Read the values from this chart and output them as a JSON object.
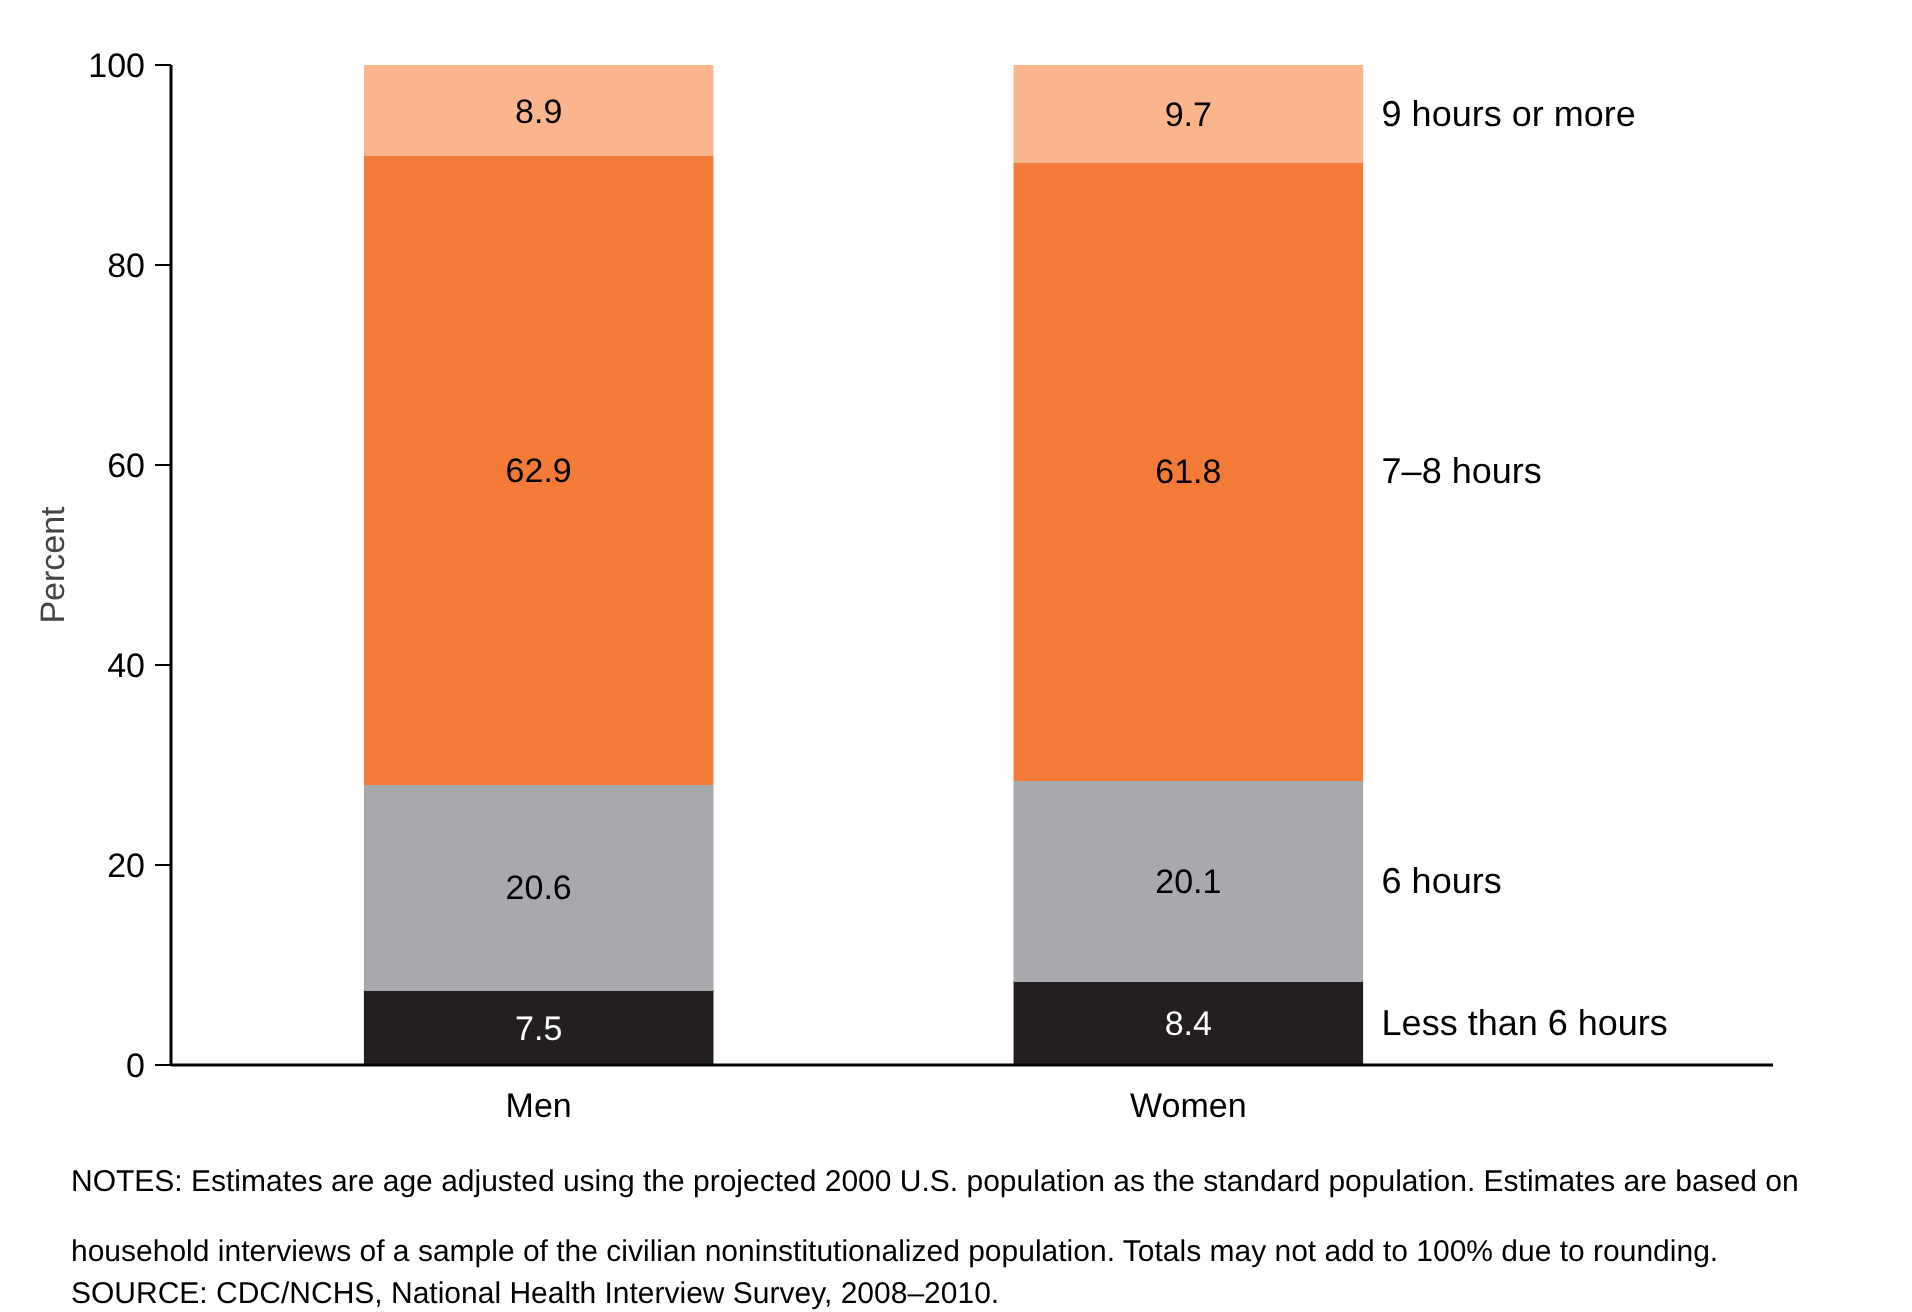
{
  "chart_data": {
    "type": "bar",
    "stacked": true,
    "ylabel": "Percent",
    "categories": [
      "Men",
      "Women"
    ],
    "series": [
      {
        "name": "Less than 6 hours",
        "color": "#231f20",
        "values": [
          7.5,
          8.4
        ]
      },
      {
        "name": "6 hours",
        "color": "#a7a9ac",
        "values": [
          20.6,
          20.1
        ]
      },
      {
        "name": "7–8 hours",
        "color": "#f47b37",
        "values": [
          62.9,
          61.8
        ]
      },
      {
        "name": "9 hours or more",
        "color": "#fbb58c",
        "values": [
          8.9,
          9.7
        ]
      }
    ],
    "ylim": [
      0,
      100
    ],
    "yticks": [
      0,
      20,
      40,
      60,
      80,
      100
    ],
    "data_labels": true,
    "annotations": [
      "NOTES: Estimates are age adjusted using the projected 2000 U.S. population as the standard population. Estimates are based on household interviews of a sample of the civilian noninstitutionalized population. Totals may not add to 100% due to rounding.",
      "SOURCE: CDC/NCHS, National Health Interview Survey, 2008–2010."
    ]
  }
}
